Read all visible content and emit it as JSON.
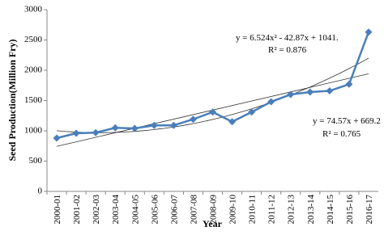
{
  "chart_data": {
    "type": "line",
    "y_label": "Seed Production(Million Fry)",
    "x_label": "Year",
    "categories": [
      "2000-01",
      "2001-02",
      "2002-03",
      "2003-04",
      "2004-05",
      "2005-06",
      "2006-07",
      "2007-08",
      "2008-09",
      "2009-10",
      "2010-11",
      "2011-12",
      "2012-13",
      "2013-14",
      "2014-15",
      "2015-16",
      "2016-17"
    ],
    "values": [
      880,
      960,
      970,
      1050,
      1040,
      1090,
      1090,
      1190,
      1310,
      1150,
      1310,
      1480,
      1600,
      1640,
      1660,
      1770,
      2630
    ],
    "color": "#4a7ebb",
    "ylim": [
      0,
      3000
    ],
    "yticks": [
      0,
      500,
      1000,
      1500,
      2000,
      2500,
      3000
    ],
    "annotations": [
      "y = 6.524x² - 42.87x + 1041.",
      "R² = 0.876",
      "y = 74.57x + 669.2",
      "R² = 0.765"
    ]
  }
}
